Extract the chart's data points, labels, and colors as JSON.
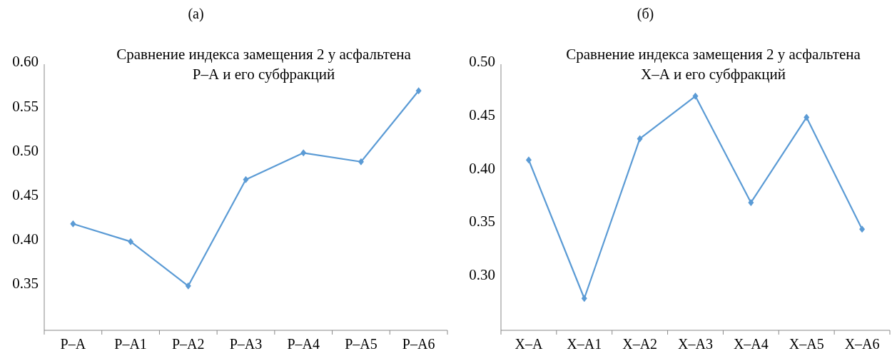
{
  "chart_data": [
    {
      "type": "line",
      "annotations": [
        "(а)"
      ],
      "title": "Сравнение индекса замещения 2 у асфальтена\nР–А и его субфракций",
      "categories": [
        "Р–А",
        "Р–А1",
        "Р–А2",
        "Р–А3",
        "Р–А4",
        "Р–А5",
        "Р–А6"
      ],
      "series": [
        {
          "color": "#5b9bd5",
          "values": [
            0.42,
            0.4,
            0.35,
            0.47,
            0.5,
            0.49,
            0.57
          ]
        }
      ],
      "ylim": [
        0.3,
        0.6
      ],
      "yticks": [
        0.35,
        {
          "value": 0.4,
          "label": "0.40"
        },
        0.45,
        {
          "value": 0.5,
          "label": "0.50"
        },
        0.55,
        {
          "value": 0.6,
          "label": "0.60"
        }
      ],
      "marker": "diamond",
      "grid": false
    },
    {
      "type": "line",
      "annotations": [
        "(б)"
      ],
      "title": "Сравнение индекса замещения 2 у асфальтена\nХ–А и его субфракций",
      "categories": [
        "Х–А",
        "Х–А1",
        "Х–А2",
        "Х–А3",
        "Х–А4",
        "Х–А5",
        "Х–А6"
      ],
      "series": [
        {
          "color": "#5b9bd5",
          "values": [
            0.41,
            0.28,
            0.43,
            0.47,
            0.37,
            0.45,
            0.345
          ]
        }
      ],
      "ylim": [
        0.25,
        0.5
      ],
      "yticks": [
        {
          "value": 0.3,
          "label": "0.30"
        },
        0.35,
        {
          "value": 0.4,
          "label": "0.40"
        },
        0.45,
        {
          "value": 0.5,
          "label": "0.50"
        }
      ],
      "marker": "diamond",
      "grid": false
    }
  ]
}
